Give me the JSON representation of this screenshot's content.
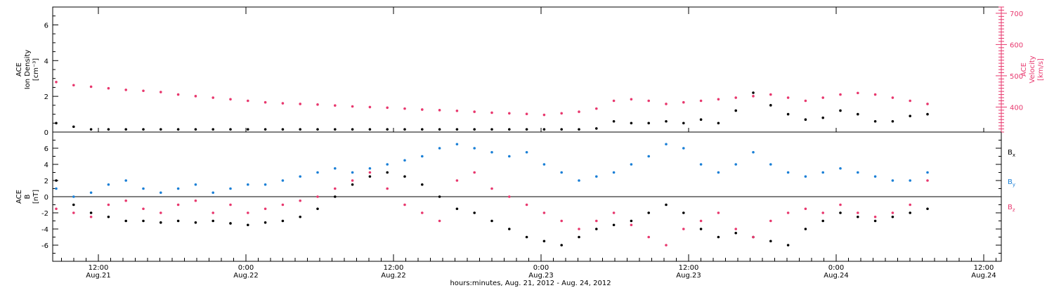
{
  "colors": {
    "black": "#000000",
    "red": "#e8386e",
    "blue": "#1a7fd6"
  },
  "chart_data": [
    {
      "type": "scatter",
      "panel": "top",
      "ylabel_left": [
        "ACE",
        "Ion Density",
        "[cm⁻³]"
      ],
      "ylabel_right": [
        "ACE",
        "Velocity",
        "[km/s]"
      ],
      "ylim_left": [
        0,
        7
      ],
      "ylim_right": [
        320,
        720
      ],
      "yticks_left": [
        "0",
        "2",
        "4",
        "6"
      ],
      "yticks_right": [
        "400",
        "500",
        "600",
        "700"
      ],
      "series": [
        {
          "color_key": "black",
          "axis": "left",
          "x": [
            0,
            2,
            4,
            6,
            8,
            10,
            12,
            14,
            16,
            18,
            20,
            22,
            24,
            26,
            28,
            30,
            32,
            34,
            36,
            38,
            40,
            42,
            44,
            46,
            48,
            50,
            52,
            54,
            56,
            58,
            60,
            62,
            64,
            66,
            68,
            70,
            72,
            74,
            76,
            78,
            80,
            82,
            84,
            86,
            88,
            90,
            92,
            94,
            96,
            98,
            100
          ],
          "y": [
            0.5,
            0.3,
            0.15,
            0.15,
            0.15,
            0.15,
            0.15,
            0.15,
            0.15,
            0.15,
            0.15,
            0.15,
            0.15,
            0.15,
            0.15,
            0.15,
            0.15,
            0.15,
            0.15,
            0.15,
            0.15,
            0.15,
            0.15,
            0.15,
            0.15,
            0.15,
            0.15,
            0.15,
            0.15,
            0.15,
            0.15,
            0.2,
            0.6,
            0.5,
            0.5,
            0.6,
            0.5,
            0.7,
            0.5,
            1.2,
            2.2,
            1.5,
            1.0,
            0.7,
            0.8,
            1.2,
            1.0,
            0.6,
            0.6,
            0.9,
            1.0
          ]
        },
        {
          "color_key": "red",
          "axis": "right",
          "x": [
            0,
            2,
            4,
            6,
            8,
            10,
            12,
            14,
            16,
            18,
            20,
            22,
            24,
            26,
            28,
            30,
            32,
            34,
            36,
            38,
            40,
            42,
            44,
            46,
            48,
            50,
            52,
            54,
            56,
            58,
            60,
            62,
            64,
            66,
            68,
            70,
            72,
            74,
            76,
            78,
            80,
            82,
            84,
            86,
            88,
            90,
            92,
            94,
            96,
            98,
            100
          ],
          "y": [
            480,
            470,
            465,
            460,
            455,
            452,
            448,
            440,
            435,
            430,
            425,
            420,
            415,
            412,
            410,
            408,
            405,
            402,
            400,
            398,
            395,
            392,
            390,
            388,
            385,
            382,
            380,
            378,
            375,
            380,
            385,
            395,
            420,
            425,
            420,
            410,
            415,
            420,
            425,
            430,
            435,
            440,
            430,
            420,
            430,
            440,
            445,
            440,
            430,
            420,
            410
          ]
        }
      ]
    },
    {
      "type": "scatter",
      "panel": "bottom",
      "ylabel": [
        "ACE",
        "B",
        "[nT]"
      ],
      "ylim": [
        -8,
        8
      ],
      "yticks": [
        "-6",
        "-4",
        "-2",
        "0",
        "2",
        "4",
        "6"
      ],
      "legend": [
        "Bx",
        "By",
        "Bz"
      ],
      "series": [
        {
          "color_key": "black",
          "x": [
            0,
            2,
            4,
            6,
            8,
            10,
            12,
            14,
            16,
            18,
            20,
            22,
            24,
            26,
            28,
            30,
            32,
            34,
            36,
            38,
            40,
            42,
            44,
            46,
            48,
            50,
            52,
            54,
            56,
            58,
            60,
            62,
            64,
            66,
            68,
            70,
            72,
            74,
            76,
            78,
            80,
            82,
            84,
            86,
            88,
            90,
            92,
            94,
            96,
            98,
            100
          ],
          "y": [
            2,
            -1,
            -2,
            -2.5,
            -3,
            -3,
            -3.2,
            -3,
            -3.2,
            -3,
            -3.3,
            -3.5,
            -3.2,
            -3,
            -2.5,
            -1.5,
            0,
            1.5,
            2.5,
            3,
            2.5,
            1.5,
            0,
            -1.5,
            -2,
            -3,
            -4,
            -5,
            -5.5,
            -6,
            -5,
            -4,
            -3.5,
            -3,
            -2,
            -1,
            -2,
            -4,
            -5,
            -4.5,
            -5,
            -5.5,
            -6,
            -4,
            -3,
            -2,
            -2.5,
            -3,
            -2.5,
            -2,
            -1.5
          ]
        },
        {
          "color_key": "blue",
          "x": [
            0,
            2,
            4,
            6,
            8,
            10,
            12,
            14,
            16,
            18,
            20,
            22,
            24,
            26,
            28,
            30,
            32,
            34,
            36,
            38,
            40,
            42,
            44,
            46,
            48,
            50,
            52,
            54,
            56,
            58,
            60,
            62,
            64,
            66,
            68,
            70,
            72,
            74,
            76,
            78,
            80,
            82,
            84,
            86,
            88,
            90,
            92,
            94,
            96,
            98,
            100
          ],
          "y": [
            1,
            0,
            0.5,
            1.5,
            2,
            1,
            0.5,
            1,
            1.5,
            0.5,
            1,
            1.5,
            1.5,
            2,
            2.5,
            3,
            3.5,
            3,
            3.5,
            4,
            4.5,
            5,
            6,
            6.5,
            6,
            5.5,
            5,
            5.5,
            4,
            3,
            2,
            2.5,
            3,
            4,
            5,
            6.5,
            6,
            4,
            3,
            4,
            5.5,
            4,
            3,
            2.5,
            3,
            3.5,
            3,
            2.5,
            2,
            2,
            3
          ]
        },
        {
          "color_key": "red",
          "x": [
            0,
            2,
            4,
            6,
            8,
            10,
            12,
            14,
            16,
            18,
            20,
            22,
            24,
            26,
            28,
            30,
            32,
            34,
            36,
            38,
            40,
            42,
            44,
            46,
            48,
            50,
            52,
            54,
            56,
            58,
            60,
            62,
            64,
            66,
            68,
            70,
            72,
            74,
            76,
            78,
            80,
            82,
            84,
            86,
            88,
            90,
            92,
            94,
            96,
            98,
            100
          ],
          "y": [
            -1.5,
            -2,
            -2.5,
            -1,
            -0.5,
            -1.5,
            -2,
            -1,
            -0.5,
            -2,
            -1,
            -2,
            -1.5,
            -1,
            -0.5,
            0,
            1,
            2,
            3,
            1,
            -1,
            -2,
            -3,
            2,
            3,
            1,
            0,
            -1,
            -2,
            -3,
            -4,
            -3,
            -2,
            -3.5,
            -5,
            -6,
            -4,
            -3,
            -2,
            -4,
            -5,
            -3,
            -2,
            -1.5,
            -2,
            -1,
            -2,
            -2.5,
            -2,
            -1,
            2
          ]
        }
      ]
    }
  ],
  "xaxis": {
    "ticks": [
      {
        "label": "12:00",
        "date": "Aug.21"
      },
      {
        "label": "0:00",
        "date": "Aug.22"
      },
      {
        "label": "12:00",
        "date": "Aug.22"
      },
      {
        "label": "0:00",
        "date": "Aug.23"
      },
      {
        "label": "12:00",
        "date": "Aug.23"
      },
      {
        "label": "0:00",
        "date": "Aug.24"
      },
      {
        "label": "12:00",
        "date": "Aug.24"
      }
    ],
    "xlabel": "hours:minutes, Aug. 21, 2012 - Aug. 24, 2012"
  }
}
